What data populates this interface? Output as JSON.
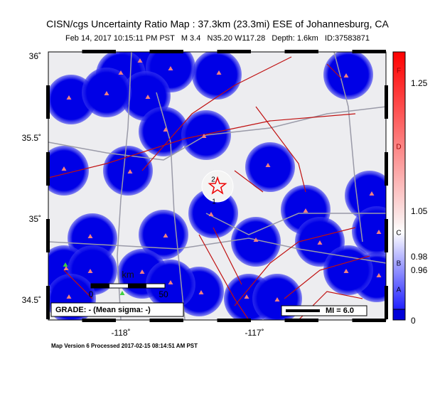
{
  "header": {
    "title": "CISN/cgs Uncertainty Ratio Map : 37.3km (23.3mi) ESE of Johannesburg, CA",
    "subtitle": "Feb 14, 2017 10:15:11 PM PST   M 3.4   N35.20 W117.28   Depth: 1.6km   ID:37583871"
  },
  "map": {
    "lat_labels": [
      "36˚",
      "35.5˚",
      "35˚",
      "34.5˚"
    ],
    "lon_labels": [
      "-118˚",
      "-117˚"
    ],
    "grade": "GRADE: - (Mean sigma: -)",
    "scale": {
      "unit": "km",
      "start": "0",
      "end": "50"
    },
    "legend": "MI = 6.0",
    "stations": [
      "2",
      "1"
    ]
  },
  "colorbar": {
    "labels": [
      "1.25",
      "1.05",
      "0.98",
      "0.96",
      "0"
    ],
    "grades": [
      "F",
      "D",
      "C",
      "B",
      "A"
    ]
  },
  "footer": "Map Version 6 Processed 2017-02-15 08:14:51 AM PST"
}
